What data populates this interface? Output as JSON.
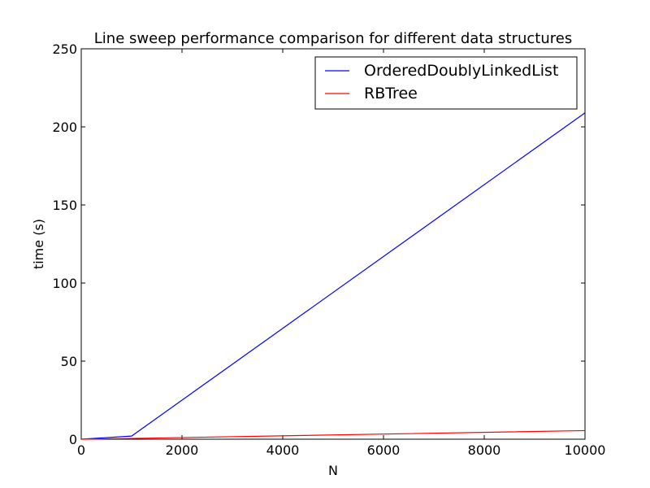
{
  "chart_data": {
    "type": "line",
    "title": "Line sweep performance comparison for different data structures",
    "xlabel": "N",
    "ylabel": "time (s)",
    "xlim": [
      0,
      10000
    ],
    "ylim": [
      0,
      250
    ],
    "xticks": [
      0,
      2000,
      4000,
      6000,
      8000,
      10000
    ],
    "yticks": [
      0,
      50,
      100,
      150,
      200,
      250
    ],
    "grid": false,
    "legend_position": "top-right",
    "series": [
      {
        "name": "OrderedDoublyLinkedList",
        "color": "#0000ff",
        "x": [
          0,
          1000,
          10000
        ],
        "y": [
          0,
          2,
          209
        ]
      },
      {
        "name": "RBTree",
        "color": "#ff0000",
        "x": [
          0,
          1000,
          10000
        ],
        "y": [
          0,
          0.5,
          5.5
        ]
      }
    ]
  }
}
